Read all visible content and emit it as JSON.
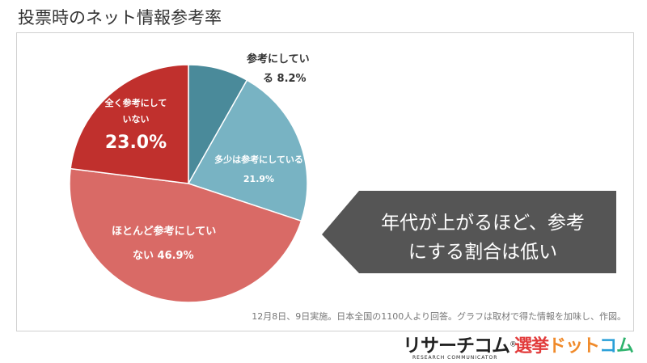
{
  "title": "投票時のネット情報参考率",
  "callout": {
    "line1": "年代が上がるほど、参考",
    "line2": "にする割合は低い"
  },
  "note": "12月8日、9日実施。日本全国の1100人より回答。グラフは取材で得た情報を加味し、作図。",
  "logos": {
    "research_main": "リサーチコム",
    "research_mark": "®",
    "research_sub": "RESEARCH COMMUNICATOR",
    "senkyo_1": "選挙",
    "senkyo_2": "ドット",
    "senkyo_3": "コ",
    "senkyo_4": "ム"
  },
  "labels": {
    "s1_line1": "参考にしてい",
    "s1_line2": "る 8.2%",
    "s2_line1": "多少は参考にしている",
    "s2_line2": "21.9%",
    "s3_line1": "ほとんど参考にしてい",
    "s3_line2": "ない 46.9%",
    "s4_line1": "全く参考にして",
    "s4_line2": "いない",
    "s4_line3": "23.0%"
  },
  "colors": {
    "s1": "#4a8a9a",
    "s2": "#78b3c3",
    "s3": "#d96a66",
    "s4": "#c0302d",
    "callout": "#555555"
  },
  "chart_data": {
    "type": "pie",
    "title": "投票時のネット情報参考率",
    "categories": [
      "参考にしている",
      "多少は参考にしている",
      "ほとんど参考にしていない",
      "全く参考にしていない"
    ],
    "values": [
      8.2,
      21.9,
      46.9,
      23.0
    ],
    "start": "12 o'clock",
    "direction": "clockwise"
  }
}
